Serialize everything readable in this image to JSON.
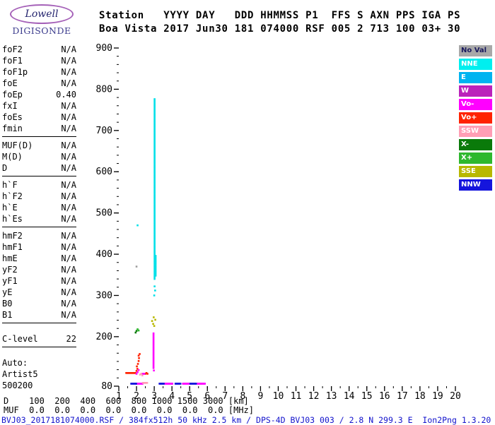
{
  "logo": {
    "line1": "Lowell",
    "line2": "DIGISONDE"
  },
  "header": {
    "line1": "Station   YYYY DAY   DDD HHMMSS P1  FFS S AXN PPS IGA PS",
    "line2": "Boa Vista 2017 Jun30 181 074000 RSF 005 2 713 100 03+ 30"
  },
  "params": {
    "groups": [
      {
        "divider": true,
        "gap": false,
        "rows": [
          {
            "label": "foF2",
            "value": "N/A"
          },
          {
            "label": "foF1",
            "value": "N/A"
          },
          {
            "label": "foF1p",
            "value": "N/A"
          },
          {
            "label": "foE",
            "value": "N/A"
          },
          {
            "label": "foEp",
            "value": "0.40"
          },
          {
            "label": "fxI",
            "value": "N/A"
          },
          {
            "label": "foEs",
            "value": "N/A"
          },
          {
            "label": "fmin",
            "value": "N/A"
          }
        ]
      },
      {
        "divider": true,
        "gap": false,
        "rows": [
          {
            "label": "MUF(D)",
            "value": "N/A"
          },
          {
            "label": "M(D)",
            "value": "N/A"
          },
          {
            "label": "D",
            "value": "N/A"
          }
        ]
      },
      {
        "divider": true,
        "gap": false,
        "rows": [
          {
            "label": "h`F",
            "value": "N/A"
          },
          {
            "label": "h`F2",
            "value": "N/A"
          },
          {
            "label": "h`E",
            "value": "N/A"
          },
          {
            "label": "h`Es",
            "value": "N/A"
          }
        ]
      },
      {
        "divider": true,
        "gap": false,
        "rows": [
          {
            "label": "hmF2",
            "value": "N/A"
          },
          {
            "label": "hmF1",
            "value": "N/A"
          },
          {
            "label": "hmE",
            "value": "N/A"
          },
          {
            "label": "yF2",
            "value": "N/A"
          },
          {
            "label": "yF1",
            "value": "N/A"
          },
          {
            "label": "yE",
            "value": "N/A"
          },
          {
            "label": "B0",
            "value": "N/A"
          },
          {
            "label": "B1",
            "value": "N/A"
          }
        ]
      },
      {
        "divider": true,
        "gap": true,
        "rows": [
          {
            "label": "C-level",
            "value": "22"
          }
        ]
      },
      {
        "divider": false,
        "gap": true,
        "rows": [
          {
            "label": "Auto:",
            "value": null
          },
          {
            "label": "Artist5",
            "value": null
          },
          {
            "label": "500200",
            "value": null
          }
        ]
      }
    ]
  },
  "legend": {
    "items": [
      {
        "label": "No Val",
        "color": "#a8a8a8",
        "text": "#1a1a5e"
      },
      {
        "label": "NNE",
        "color": "#00efef",
        "text": "#ffffff"
      },
      {
        "label": "E",
        "color": "#00b4f0",
        "text": "#ffffff"
      },
      {
        "label": "W",
        "color": "#bb22bb",
        "text": "#ffffff"
      },
      {
        "label": "Vo-",
        "color": "#ff00ff",
        "text": "#ffffff"
      },
      {
        "label": "Vo+",
        "color": "#ff2200",
        "text": "#ffffff"
      },
      {
        "label": "SSW",
        "color": "#ff9eb5",
        "text": "#ffffff"
      },
      {
        "label": "X-",
        "color": "#0a7a0a",
        "text": "#ffffff"
      },
      {
        "label": "X+",
        "color": "#2eb82e",
        "text": "#ffffff"
      },
      {
        "label": "SSE",
        "color": "#b8b800",
        "text": "#ffffff"
      },
      {
        "label": "NNW",
        "color": "#1515dd",
        "text": "#ffffff"
      }
    ]
  },
  "footer": {
    "d_row": "D    100  200  400  600  800 1000 1500 3000 [km]",
    "muf_row": "MUF  0.0  0.0  0.0  0.0  0.0  0.0  0.0  0.0 [MHz]",
    "status": "BVJ03_2017181074000.RSF / 384fx512h 50 kHz 2.5 km / DPS-4D BVJ03 003 / 2.8 N 299.3 E  Ion2Png 1.3.20"
  },
  "chart_data": {
    "type": "scatter",
    "xlabel": "[MHz]",
    "ylabel": "[km]",
    "xlim": [
      1,
      20
    ],
    "ylim": [
      80,
      900
    ],
    "x_ticks": [
      1,
      2,
      3,
      4,
      5,
      6,
      7,
      8,
      9,
      10,
      11,
      12,
      13,
      14,
      15,
      16,
      17,
      18,
      19,
      20
    ],
    "y_ticks": [
      80,
      200,
      300,
      400,
      500,
      600,
      700,
      800,
      900
    ],
    "x_minor_step": 0.5,
    "y_minor_step": 20,
    "legend_position": "right",
    "grid": false,
    "series": [
      {
        "name": "NNE",
        "color": "#00e0e8",
        "points": [
          [
            3.0,
            300
          ],
          [
            3.05,
            312
          ],
          [
            3.02,
            322
          ],
          [
            2.06,
            470
          ]
        ],
        "vlines": [
          [
            3.02,
            340,
            778
          ],
          [
            3.08,
            348,
            398
          ]
        ]
      },
      {
        "name": "No Val",
        "color": "#9e9e9e",
        "points": [
          [
            2.0,
            370
          ]
        ]
      },
      {
        "name": "X-",
        "color": "#0a7a0a",
        "points": [
          [
            1.95,
            210
          ],
          [
            2.0,
            214
          ]
        ]
      },
      {
        "name": "X+",
        "color": "#2eb82e",
        "points": [
          [
            2.06,
            218
          ],
          [
            2.12,
            215
          ]
        ]
      },
      {
        "name": "SSE",
        "color": "#b8b800",
        "points": [
          [
            2.88,
            238
          ],
          [
            2.94,
            231
          ],
          [
            3.0,
            226
          ],
          [
            3.06,
            241
          ],
          [
            2.97,
            247
          ]
        ]
      },
      {
        "name": "Vo+",
        "color": "#ff2200",
        "points": [
          [
            2.0,
            117
          ],
          [
            2.05,
            122
          ],
          [
            2.02,
            128
          ],
          [
            2.08,
            134
          ],
          [
            2.12,
            141
          ],
          [
            2.14,
            148
          ],
          [
            2.12,
            154
          ],
          [
            2.18,
            158
          ],
          [
            2.5,
            110
          ],
          [
            2.56,
            112
          ],
          [
            2.62,
            110
          ]
        ],
        "hlines": [
          [
            112,
            1.42,
            1.96
          ]
        ]
      },
      {
        "name": "Vo-",
        "color": "#ff00ff",
        "points": [
          [
            2.0,
            110
          ],
          [
            2.06,
            114
          ],
          [
            2.12,
            119
          ],
          [
            2.98,
            118
          ]
        ],
        "vlines": [
          [
            2.96,
            124,
            208
          ]
        ],
        "hlines": [
          [
            86,
            1.98,
            2.34
          ],
          [
            86,
            3.58,
            4.02
          ],
          [
            86,
            4.62,
            5.02
          ],
          [
            86,
            5.42,
            5.88
          ],
          [
            110,
            2.28,
            2.46
          ]
        ]
      },
      {
        "name": "SSW",
        "color": "#ff9eb5",
        "points": [
          [
            2.2,
            108
          ],
          [
            2.27,
            110
          ],
          [
            2.33,
            106
          ]
        ],
        "hlines": [
          [
            88,
            2.36,
            2.6
          ]
        ]
      },
      {
        "name": "NNW",
        "color": "#1515dd",
        "hlines": [
          [
            86,
            1.7,
            1.98
          ],
          [
            86,
            3.3,
            3.56
          ],
          [
            86,
            4.2,
            4.5
          ],
          [
            86,
            5.04,
            5.38
          ]
        ]
      }
    ]
  }
}
